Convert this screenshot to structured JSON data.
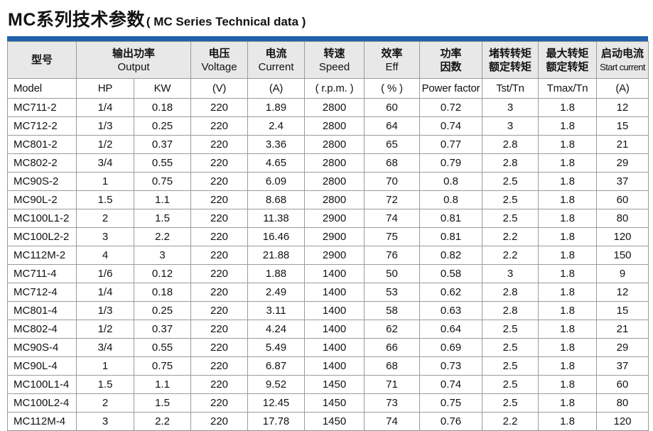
{
  "page_title": {
    "zh": "MC系列技术参数",
    "en": "( MC Series Technical data )"
  },
  "colors": {
    "accent_bar": "#2061a9",
    "header_bg": "#e8e8e8",
    "grid_border": "#9b9b9b",
    "text": "#121212"
  },
  "table": {
    "header_row1": {
      "model": {
        "l1": "型号",
        "l2": ""
      },
      "output": {
        "l1": "输出功率",
        "l2": "Output"
      },
      "voltage": {
        "l1": "电压",
        "l2": "Voltage"
      },
      "current": {
        "l1": "电流",
        "l2": "Current"
      },
      "speed": {
        "l1": "转速",
        "l2": "Speed"
      },
      "eff": {
        "l1": "效率",
        "l2": "Eff"
      },
      "power_factor": {
        "l1": "功率",
        "l2": "因数"
      },
      "tst": {
        "l1": "堵转转矩",
        "l2": "额定转矩"
      },
      "tmax": {
        "l1": "最大转矩",
        "l2": "额定转矩"
      },
      "start": {
        "l1": "启动电流",
        "l2": "Start current"
      }
    },
    "header_row2": {
      "model": "Model",
      "hp": "HP",
      "kw": "KW",
      "voltage": "(V)",
      "current": "(A)",
      "speed": "( r.p.m. )",
      "eff": "( % )",
      "power_factor": "Power factor",
      "tst": "Tst/Tn",
      "tmax": "Tmax/Tn",
      "start": "(A)"
    },
    "rows": [
      [
        "MC711-2",
        "1/4",
        "0.18",
        "220",
        "1.89",
        "2800",
        "60",
        "0.72",
        "3",
        "1.8",
        "12"
      ],
      [
        "MC712-2",
        "1/3",
        "0.25",
        "220",
        "2.4",
        "2800",
        "64",
        "0.74",
        "3",
        "1.8",
        "15"
      ],
      [
        "MC801-2",
        "1/2",
        "0.37",
        "220",
        "3.36",
        "2800",
        "65",
        "0.77",
        "2.8",
        "1.8",
        "21"
      ],
      [
        "MC802-2",
        "3/4",
        "0.55",
        "220",
        "4.65",
        "2800",
        "68",
        "0.79",
        "2.8",
        "1.8",
        "29"
      ],
      [
        "MC90S-2",
        "1",
        "0.75",
        "220",
        "6.09",
        "2800",
        "70",
        "0.8",
        "2.5",
        "1.8",
        "37"
      ],
      [
        "MC90L-2",
        "1.5",
        "1.1",
        "220",
        "8.68",
        "2800",
        "72",
        "0.8",
        "2.5",
        "1.8",
        "60"
      ],
      [
        "MC100L1-2",
        "2",
        "1.5",
        "220",
        "11.38",
        "2900",
        "74",
        "0.81",
        "2.5",
        "1.8",
        "80"
      ],
      [
        "MC100L2-2",
        "3",
        "2.2",
        "220",
        "16.46",
        "2900",
        "75",
        "0.81",
        "2.2",
        "1.8",
        "120"
      ],
      [
        "MC112M-2",
        "4",
        "3",
        "220",
        "21.88",
        "2900",
        "76",
        "0.82",
        "2.2",
        "1.8",
        "150"
      ],
      [
        "MC711-4",
        "1/6",
        "0.12",
        "220",
        "1.88",
        "1400",
        "50",
        "0.58",
        "3",
        "1.8",
        "9"
      ],
      [
        "MC712-4",
        "1/4",
        "0.18",
        "220",
        "2.49",
        "1400",
        "53",
        "0.62",
        "2.8",
        "1.8",
        "12"
      ],
      [
        "MC801-4",
        "1/3",
        "0.25",
        "220",
        "3.11",
        "1400",
        "58",
        "0.63",
        "2.8",
        "1.8",
        "15"
      ],
      [
        "MC802-4",
        "1/2",
        "0.37",
        "220",
        "4.24",
        "1400",
        "62",
        "0.64",
        "2.5",
        "1.8",
        "21"
      ],
      [
        "MC90S-4",
        "3/4",
        "0.55",
        "220",
        "5.49",
        "1400",
        "66",
        "0.69",
        "2.5",
        "1.8",
        "29"
      ],
      [
        "MC90L-4",
        "1",
        "0.75",
        "220",
        "6.87",
        "1400",
        "68",
        "0.73",
        "2.5",
        "1.8",
        "37"
      ],
      [
        "MC100L1-4",
        "1.5",
        "1.1",
        "220",
        "9.52",
        "1450",
        "71",
        "0.74",
        "2.5",
        "1.8",
        "60"
      ],
      [
        "MC100L2-4",
        "2",
        "1.5",
        "220",
        "12.45",
        "1450",
        "73",
        "0.75",
        "2.5",
        "1.8",
        "80"
      ],
      [
        "MC112M-4",
        "3",
        "2.2",
        "220",
        "17.78",
        "1450",
        "74",
        "0.76",
        "2.2",
        "1.8",
        "120"
      ]
    ]
  }
}
